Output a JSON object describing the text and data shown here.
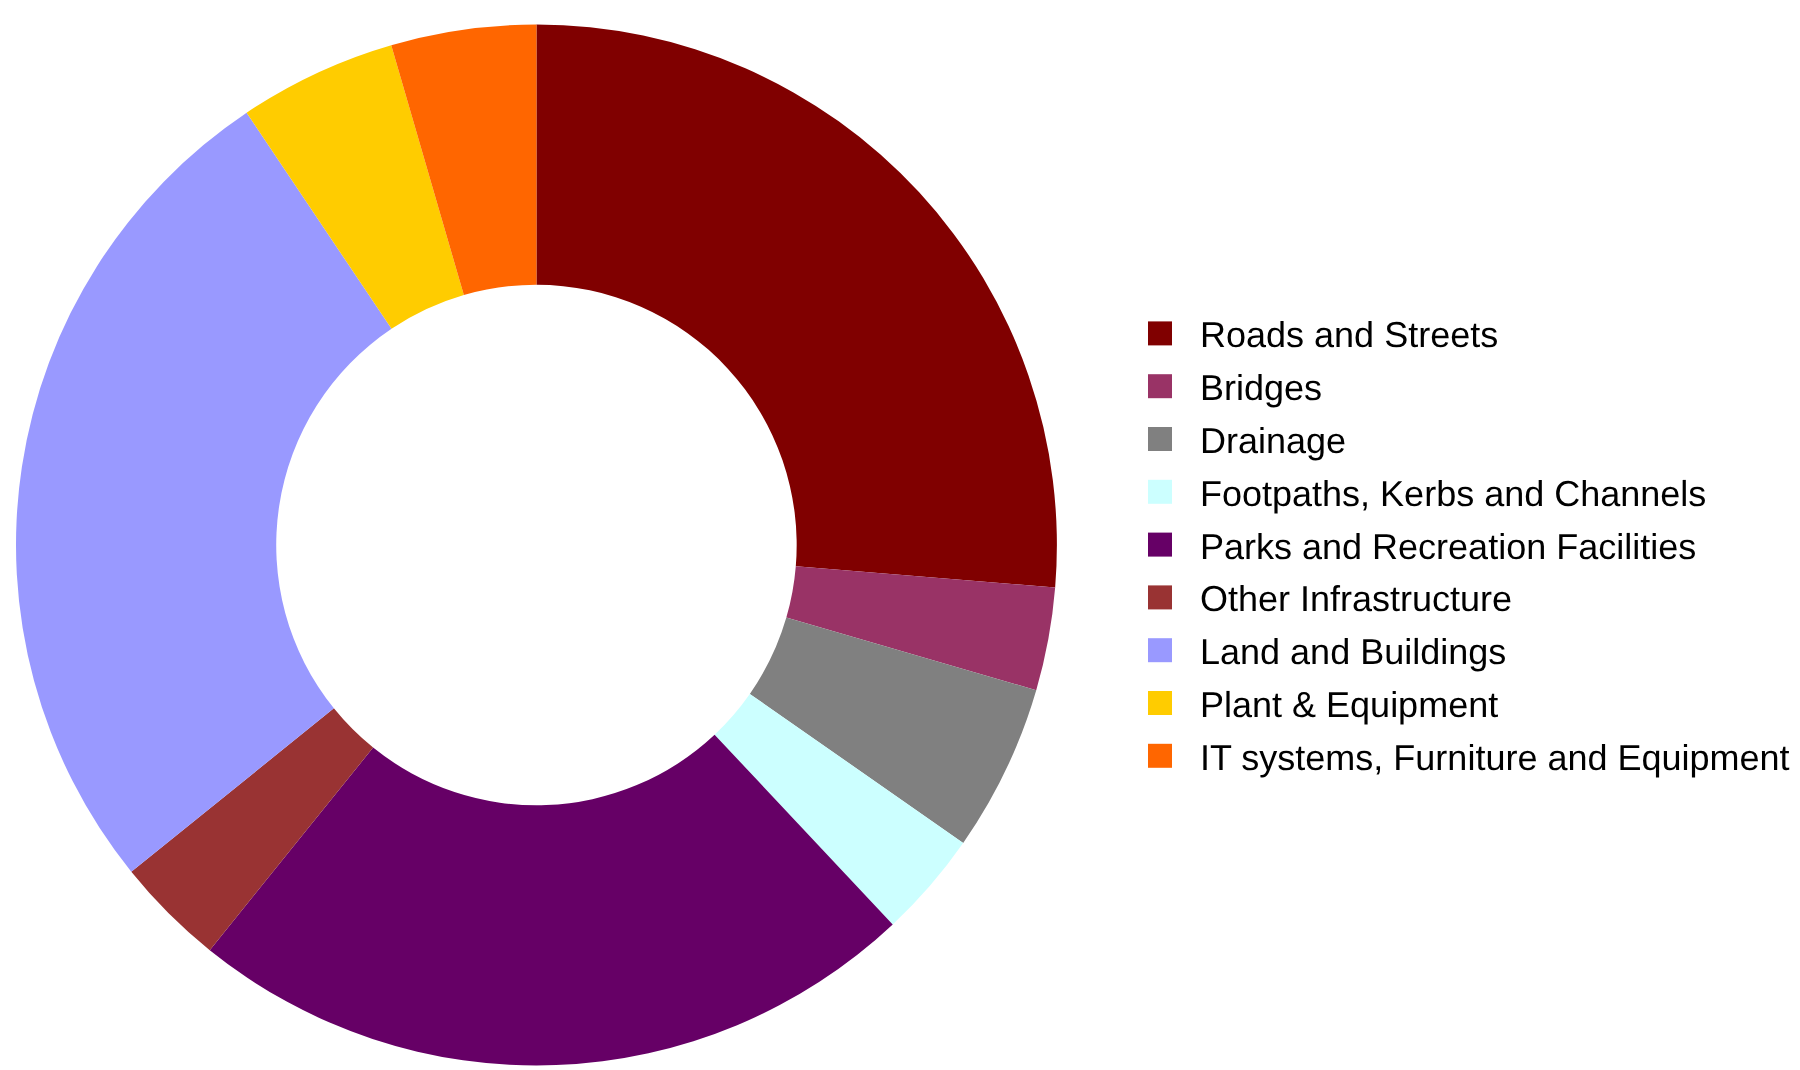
{
  "chart_data": {
    "type": "donut",
    "categories": [
      "Roads and Streets",
      "Bridges",
      "Drainage",
      "Footpaths, Kerbs and Channels",
      "Parks and Recreation Facilities",
      "Other Infrastructure",
      "Land and Buildings",
      "Plant & Equipment",
      "IT systems, Furniture and Equipment"
    ],
    "values": [
      26.3,
      3.2,
      5.2,
      3.3,
      22.8,
      3.4,
      26.4,
      4.9,
      4.5
    ],
    "colors": [
      "#800000",
      "#993366",
      "#808080",
      "#ccffff",
      "#660066",
      "#993333",
      "#9999ff",
      "#ffcc00",
      "#ff6600"
    ],
    "legend": "right"
  }
}
